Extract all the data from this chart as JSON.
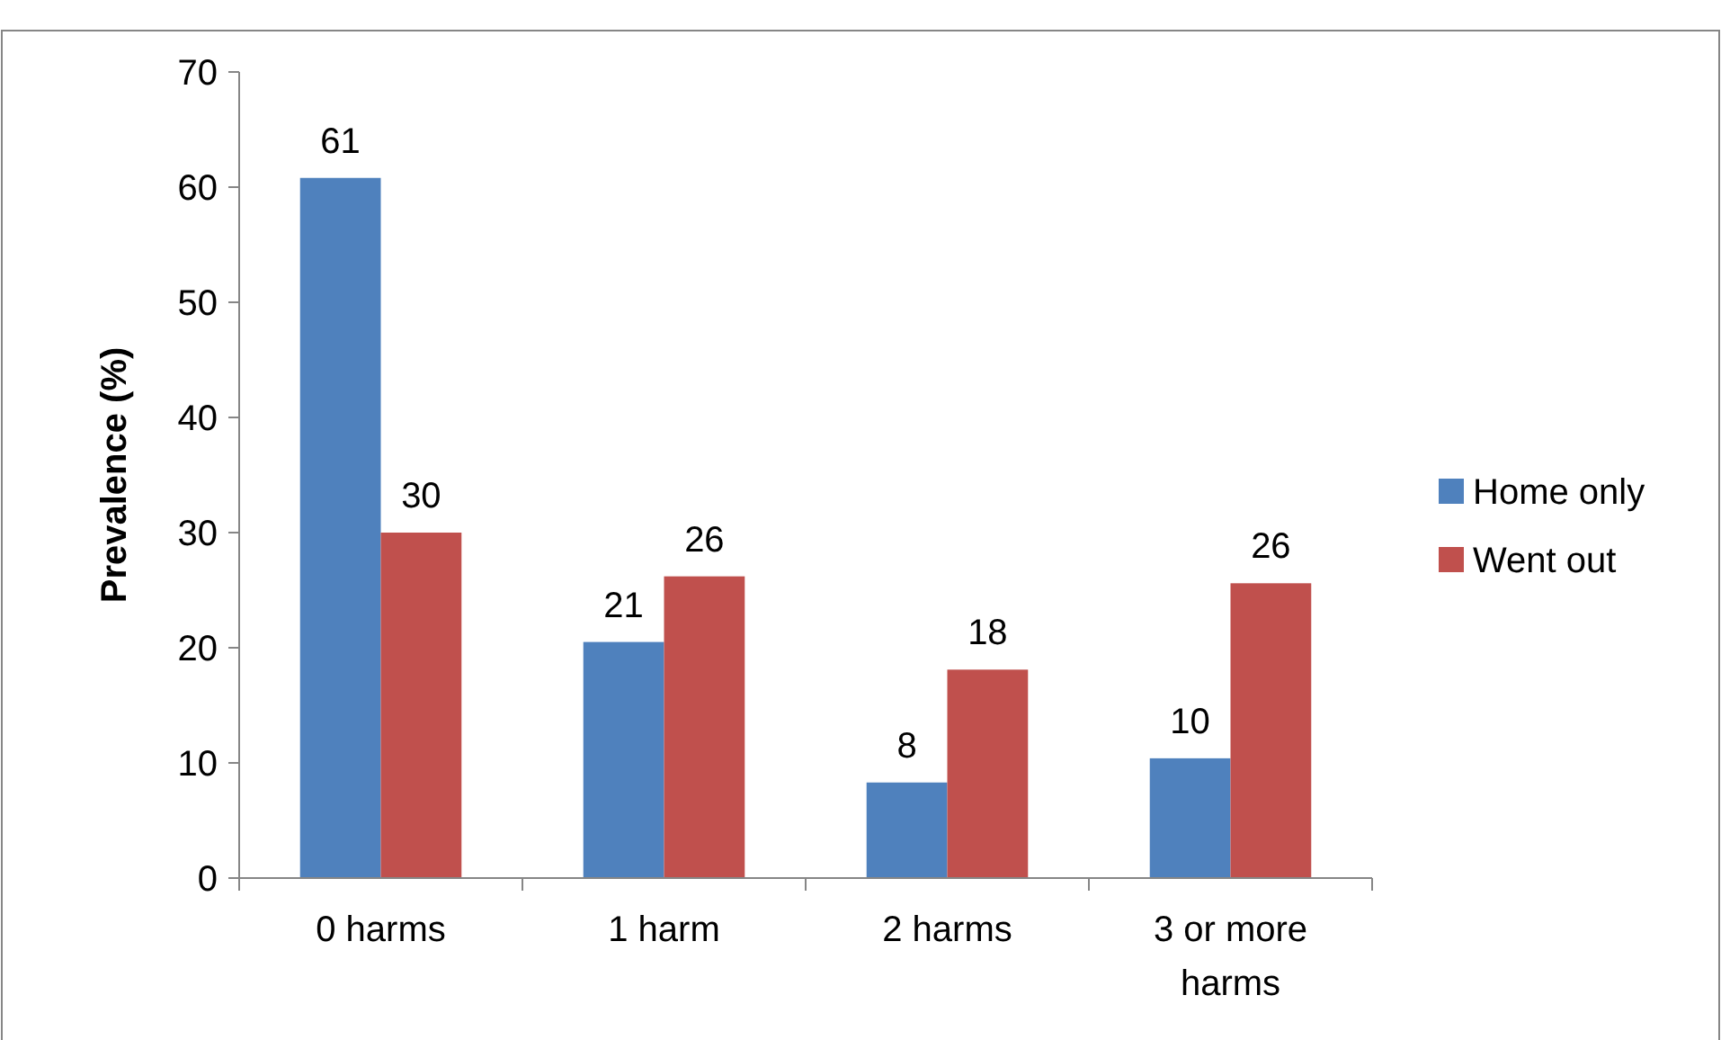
{
  "chart_data": {
    "type": "bar",
    "ylabel": "Prevalence (%)",
    "categories": [
      "0 harms",
      "1 harm",
      "2 harms",
      "3 or more harms"
    ],
    "series": [
      {
        "name": "Home only",
        "color": "#4f81bd",
        "values": [
          60.8,
          20.5,
          8.3,
          10.4
        ],
        "value_labels": [
          "61",
          "21",
          "8",
          "10"
        ]
      },
      {
        "name": "Went out",
        "color": "#c0504d",
        "values": [
          30,
          26.2,
          18.1,
          25.6
        ],
        "value_labels": [
          "30",
          "26",
          "18",
          "26"
        ]
      }
    ],
    "ylim": [
      0,
      70
    ],
    "yticks": [
      0,
      10,
      20,
      30,
      40,
      50,
      60,
      70
    ],
    "grid": false,
    "legend": "right"
  }
}
